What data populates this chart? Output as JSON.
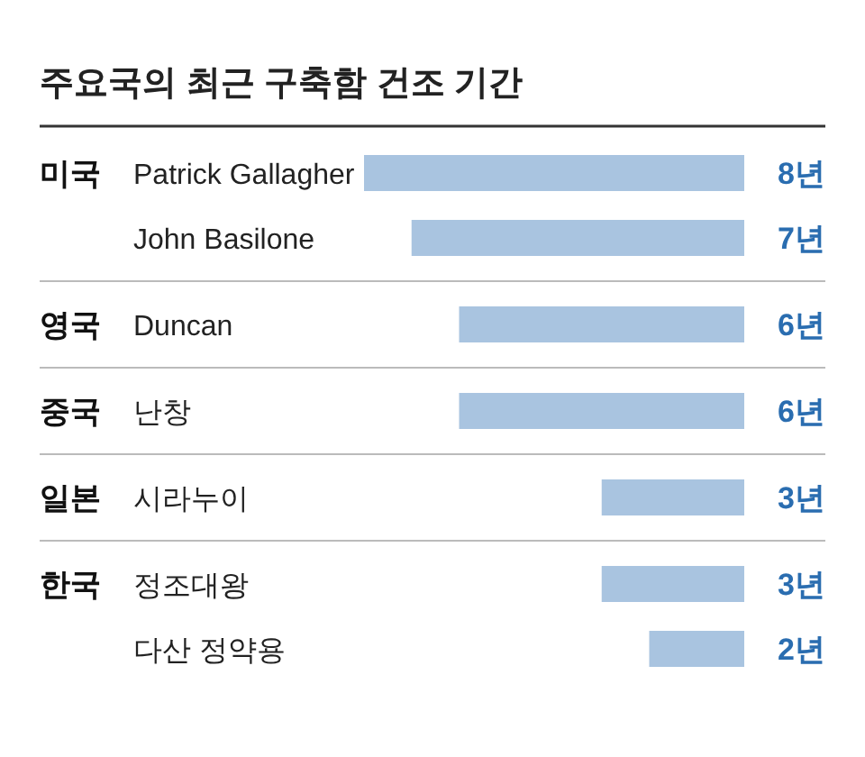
{
  "chart_data": {
    "type": "bar",
    "orientation": "horizontal",
    "title": "주요국의 최근 구축함 건조 기간",
    "categories": [
      "Patrick Gallagher",
      "John Basilone",
      "Duncan",
      "난창",
      "시라누이",
      "정조대왕",
      "다산 정약용"
    ],
    "values": [
      8,
      7,
      6,
      6,
      3,
      3,
      2
    ],
    "value_labels": [
      "8년",
      "7년",
      "6년",
      "6년",
      "3년",
      "3년",
      "2년"
    ],
    "color": "#a9c4e0",
    "annotations": [
      "미국",
      null,
      "영국",
      "중국",
      "일본",
      "한국",
      null
    ]
  }
}
